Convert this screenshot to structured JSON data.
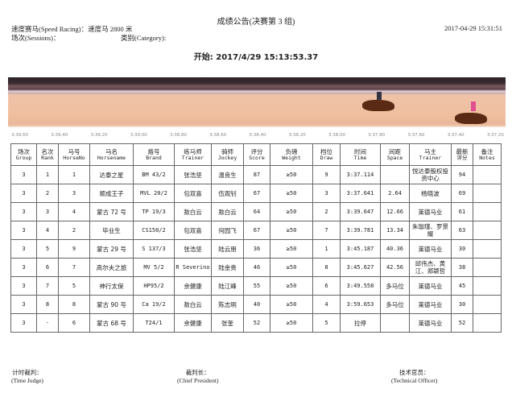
{
  "title": "成绩公告(决赛第 3 组)",
  "race": "速度赛马(Speed Racing)：速度马 2800 米",
  "datetime": "2017-04-29   15:31:51",
  "sessions": "场次(Sessions)：",
  "category": "类别(Category):",
  "start": "开始: 2017/4/29 15:13:53.37",
  "ticks": [
    "3:39.60",
    "3:39.40",
    "3:39.20",
    "3:39.00",
    "3:38.80",
    "3:38.60",
    "3:38.40",
    "3:38.20",
    "3:38.00",
    "3:37.80",
    "3:37.60",
    "3:37.40",
    "3:37.20"
  ],
  "columns": [
    [
      "场次",
      "Group"
    ],
    [
      "名次",
      "Rank"
    ],
    [
      "马号",
      "HorseNo"
    ],
    [
      "马名",
      "Horsename"
    ],
    [
      "烙号",
      "Brand"
    ],
    [
      "练马师",
      "Trainer"
    ],
    [
      "骑师",
      "Jockey"
    ],
    [
      "评分",
      "Score"
    ],
    [
      "负磅",
      "Weight"
    ],
    [
      "档位",
      "Draw"
    ],
    [
      "时间",
      "Time"
    ],
    [
      "间距",
      "Space"
    ],
    [
      "马主",
      "Trainer"
    ],
    [
      "最新",
      "评分"
    ],
    [
      "备注",
      "Notes"
    ]
  ],
  "rows": [
    [
      "3",
      "1",
      "1",
      "达泰之星",
      "BM 43/2",
      "张浩坚",
      "温良生",
      "87",
      "≥50",
      "9",
      "3:37.114",
      "",
      "悦达泰股权投资中心",
      "94",
      ""
    ],
    [
      "3",
      "2",
      "3",
      "顺成王子",
      "MVL 20/2",
      "包双喜",
      "伍观钊",
      "67",
      "≥50",
      "3",
      "3:37.641",
      "2.64",
      "杨晓波",
      "69",
      ""
    ],
    [
      "3",
      "3",
      "4",
      "蒙古 72 号",
      "TP 19/3",
      "敖白云",
      "敖白云",
      "64",
      "≥50",
      "2",
      "3:39.647",
      "12.66",
      "莱德马业",
      "61",
      ""
    ],
    [
      "3",
      "4",
      "2",
      "毕业生",
      "CS150/2",
      "包双喜",
      "何园飞",
      "67",
      "≥50",
      "7",
      "3:39.781",
      "13.34",
      "朱珈瑾、罗景耀",
      "63",
      ""
    ],
    [
      "3",
      "5",
      "9",
      "蒙古 29 号",
      "S 137/3",
      "张浩坚",
      "陆云朋",
      "36",
      "≥50",
      "1",
      "3:45.187",
      "40.36",
      "莱德马业",
      "30",
      ""
    ],
    [
      "3",
      "6",
      "7",
      "高尔夫之旅",
      "MV 5/2",
      "R Severino",
      "陆金贵",
      "46",
      "≥50",
      "8",
      "3:45.627",
      "42.56",
      "邱伟杰、黄江、郑颖哲",
      "38",
      ""
    ],
    [
      "3",
      "7",
      "5",
      "神行太保",
      "HP95/2",
      "余健康",
      "陆江峰",
      "55",
      "≥50",
      "6",
      "3:49.558",
      "多马位",
      "莱德马业",
      "45",
      ""
    ],
    [
      "3",
      "8",
      "8",
      "蒙古 90 号",
      "Ca 19/2",
      "敖白云",
      "陈志明",
      "40",
      "≥50",
      "4",
      "3:59.653",
      "多马位",
      "莱德马业",
      "30",
      ""
    ],
    [
      "3",
      "-",
      "6",
      "蒙古 68 号",
      "T24/1",
      "余健康",
      "张奎",
      "52",
      "≥50",
      "5",
      "拉停",
      "",
      "莱德马业",
      "52",
      ""
    ]
  ],
  "signatures": [
    [
      "计时裁判：",
      "(Time Judge)"
    ],
    [
      "裁判长：",
      "(Chief President)"
    ],
    [
      "技术官员：",
      "(Technical Officer)"
    ]
  ]
}
